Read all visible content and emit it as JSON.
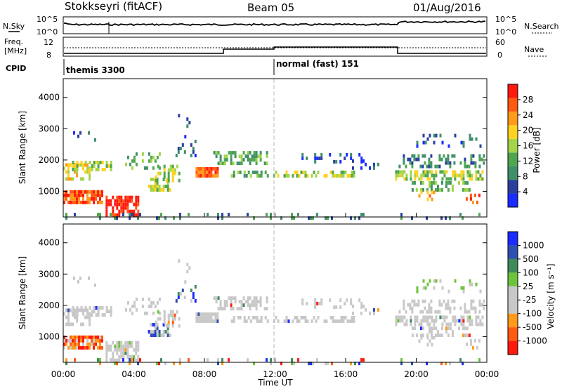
{
  "header": {
    "station": "Stokkseyri (fitACF)",
    "beam": "Beam 05",
    "date": "01/Aug/2016"
  },
  "noise_panel": {
    "left_label": "N.Sky",
    "right_label": "N.Search",
    "left_ticks": [
      "10^5",
      "10^0"
    ],
    "right_ticks": [
      "10^5",
      "10^0"
    ]
  },
  "freq_panel": {
    "left_label_1": "Freq.",
    "left_label_2": "[MHz]",
    "right_label": "Nave",
    "left_ticks": [
      "12",
      "8"
    ],
    "right_ticks": [
      "60",
      "0"
    ]
  },
  "cpid": {
    "label": "CPID",
    "segments": [
      {
        "name": "themis 3300",
        "start_hour": 0
      },
      {
        "name": "normal (fast) 151",
        "start_hour": 12
      }
    ]
  },
  "colors": {
    "power_scale": [
      "#1a2cff",
      "#2a3f9e",
      "#3f8f6a",
      "#4fa64f",
      "#a3d44a",
      "#ffd21f",
      "#ff9a1a",
      "#ff5a10",
      "#ff1a0f"
    ],
    "velocity_scale": [
      "#1a2cff",
      "#2f4fb0",
      "#3d8a5a",
      "#6cc43a",
      "#c8c8c8",
      "#c8c8c8",
      "#ff9a1a",
      "#ff5a10",
      "#ff1a0f"
    ],
    "background_scatter_gray": "#c8c8c8"
  },
  "chart_data": [
    {
      "type": "heatmap",
      "title": "",
      "xlabel": "",
      "ylabel": "Slant Range [km]",
      "xlim": [
        0,
        24
      ],
      "ylim": [
        180,
        4600
      ],
      "yticks": [
        "1000",
        "2000",
        "3000",
        "4000"
      ],
      "ytick_values": [
        1000,
        2000,
        3000,
        4000
      ],
      "colorbar": {
        "label": "Power [dB]",
        "ticks": [
          "4",
          "8",
          "12",
          "16",
          "20",
          "24",
          "28"
        ],
        "tick_values": [
          4,
          8,
          12,
          16,
          20,
          24,
          28
        ],
        "range": [
          0,
          32
        ]
      }
    },
    {
      "type": "heatmap",
      "title": "",
      "xlabel": "Time UT",
      "ylabel": "Slant Range [km]",
      "xlim": [
        0,
        24
      ],
      "ylim": [
        180,
        4600
      ],
      "xticks": [
        "00:00",
        "04:00",
        "08:00",
        "12:00",
        "16:00",
        "20:00",
        "00:00"
      ],
      "xtick_values": [
        0,
        4,
        8,
        12,
        16,
        20,
        24
      ],
      "yticks": [
        "1000",
        "2000",
        "3000",
        "4000"
      ],
      "ytick_values": [
        1000,
        2000,
        3000,
        4000
      ],
      "colorbar": {
        "label": "Velocity [m s⁻¹]",
        "ticks": [
          "1000",
          "500",
          "100",
          "25",
          "-25",
          "-100",
          "-500",
          "-1000"
        ]
      }
    }
  ]
}
